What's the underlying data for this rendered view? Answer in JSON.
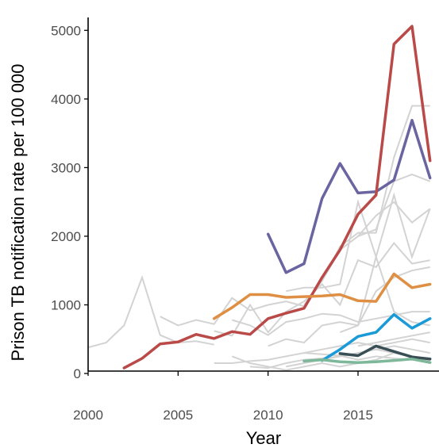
{
  "chart_data": {
    "type": "line",
    "title": "",
    "xlabel": "Year",
    "ylabel": "Prison TB notification rate per 100 000",
    "xlim": [
      2000,
      2019.5
    ],
    "ylim": [
      -150,
      5350
    ],
    "xticks": [
      {
        "value": 2000,
        "label": "2000"
      },
      {
        "value": 2005,
        "label": "2005"
      },
      {
        "value": 2010,
        "label": "2010"
      },
      {
        "value": 2015,
        "label": "2015"
      }
    ],
    "yticks": [
      {
        "value": 0,
        "label": "0"
      },
      {
        "value": 1000,
        "label": "1000"
      },
      {
        "value": 2000,
        "label": "2000"
      },
      {
        "value": 3000,
        "label": "3000"
      },
      {
        "value": 4000,
        "label": "4000"
      },
      {
        "value": 5000,
        "label": "5000"
      }
    ],
    "grid": false,
    "background_color": "#d3d3d3",
    "background_series": [
      {
        "x": [
          2000,
          2001,
          2002,
          2003,
          2004,
          2005,
          2006,
          2007
        ],
        "values": [
          380,
          450,
          700,
          1400,
          560,
          450,
          470,
          420
        ]
      },
      {
        "x": [
          2004,
          2005,
          2006,
          2007,
          2008,
          2009,
          2010,
          2011,
          2012
        ],
        "values": [
          830,
          700,
          780,
          720,
          1100,
          920,
          1000,
          1050,
          980
        ]
      },
      {
        "x": [
          2007,
          2008,
          2009,
          2010,
          2011,
          2012,
          2013,
          2014,
          2015,
          2016,
          2017,
          2018,
          2019
        ],
        "values": [
          620,
          550,
          1000,
          600,
          900,
          1050,
          1300,
          1000,
          1650,
          1550,
          1900,
          1600,
          1650
        ]
      },
      {
        "x": [
          2008,
          2009,
          2010,
          2011,
          2012,
          2013,
          2014,
          2015,
          2016,
          2017,
          2018,
          2019
        ],
        "values": [
          780,
          700,
          560,
          750,
          800,
          870,
          850,
          750,
          800,
          850,
          900,
          900
        ]
      },
      {
        "x": [
          2007,
          2008,
          2009,
          2010,
          2011,
          2012,
          2013,
          2014,
          2015,
          2016,
          2017,
          2018,
          2019
        ],
        "values": [
          150,
          150,
          180,
          200,
          250,
          300,
          280,
          260,
          200,
          250,
          220,
          200,
          180
        ]
      },
      {
        "x": [
          2009,
          2010,
          2011,
          2012,
          2013,
          2014,
          2015,
          2016,
          2017,
          2018,
          2019
        ],
        "values": [
          100,
          80,
          150,
          200,
          220,
          250,
          300,
          350,
          400,
          350,
          300
        ]
      },
      {
        "x": [
          2008,
          2009,
          2010,
          2011,
          2012,
          2013,
          2014,
          2015,
          2016,
          2017,
          2018,
          2019
        ],
        "values": [
          250,
          150,
          100,
          50,
          100,
          150,
          100,
          150,
          200,
          300,
          250,
          200
        ]
      },
      {
        "x": [
          2010,
          2011,
          2012,
          2013,
          2014,
          2015,
          2016,
          2017,
          2018,
          2019
        ],
        "values": [
          400,
          500,
          450,
          700,
          750,
          700,
          1700,
          900,
          750,
          700
        ]
      },
      {
        "x": [
          2011,
          2012,
          2013,
          2014,
          2015,
          2016,
          2017,
          2018,
          2019
        ],
        "values": [
          1200,
          1250,
          1250,
          1300,
          2500,
          1700,
          2600,
          1700,
          2400
        ]
      },
      {
        "x": [
          2012,
          2013,
          2014,
          2015,
          2016,
          2017,
          2018,
          2019
        ],
        "values": [
          1000,
          1350,
          1850,
          2050,
          2050,
          3150,
          3900,
          3900
        ]
      },
      {
        "x": [
          2013,
          2014,
          2015,
          2016,
          2017,
          2018,
          2019
        ],
        "values": [
          1350,
          1800,
          2000,
          2100,
          2800,
          2900,
          2800
        ]
      },
      {
        "x": [
          2014,
          2015,
          2016,
          2017,
          2018,
          2019
        ],
        "values": [
          600,
          700,
          1200,
          1400,
          1500,
          1550
        ]
      },
      {
        "x": [
          2015,
          2016,
          2017,
          2018,
          2019
        ],
        "values": [
          400,
          450,
          500,
          550,
          600
        ]
      },
      {
        "x": [
          2012,
          2013,
          2014,
          2015,
          2016,
          2017,
          2018,
          2019
        ],
        "values": [
          300,
          350,
          400,
          450,
          400,
          450,
          500,
          450
        ]
      },
      {
        "x": [
          2011,
          2012,
          2013,
          2014,
          2015,
          2016,
          2017,
          2018,
          2019
        ],
        "values": [
          100,
          150,
          200,
          250,
          300,
          350,
          300,
          250,
          200
        ]
      },
      {
        "x": [
          2015,
          2016,
          2017,
          2018,
          2019
        ],
        "values": [
          2000,
          2300,
          2500,
          2200,
          2400
        ]
      }
    ],
    "series": [
      {
        "color": "#6a65a0",
        "x": [
          2010,
          2011,
          2012,
          2013,
          2014,
          2015,
          2016,
          2017,
          2018,
          2019
        ],
        "values": [
          2030,
          1470,
          1600,
          2550,
          3060,
          2630,
          2650,
          2820,
          3690,
          2850
        ]
      },
      {
        "color": "#b94a48",
        "x": [
          2002,
          2003,
          2004,
          2005,
          2006,
          2007,
          2008,
          2009,
          2010,
          2011,
          2012,
          2013,
          2014,
          2015,
          2016,
          2017,
          2018,
          2019
        ],
        "values": [
          80,
          220,
          430,
          460,
          570,
          510,
          610,
          570,
          800,
          880,
          950,
          1400,
          1800,
          2320,
          2600,
          4800,
          5060,
          3100
        ]
      },
      {
        "color": "#df8f44",
        "x": [
          2007,
          2008,
          2009,
          2010,
          2011,
          2012,
          2013,
          2014,
          2015,
          2016,
          2017,
          2018,
          2019
        ],
        "values": [
          800,
          960,
          1150,
          1150,
          1110,
          1120,
          1130,
          1150,
          1060,
          1050,
          1450,
          1250,
          1300
        ]
      },
      {
        "color": "#1a9ad6",
        "x": [
          2013,
          2014,
          2015,
          2016,
          2017,
          2018,
          2019
        ],
        "values": [
          190,
          350,
          540,
          600,
          860,
          660,
          800
        ]
      },
      {
        "color": "#394e55",
        "x": [
          2014,
          2015,
          2016,
          2017,
          2018,
          2019
        ],
        "values": [
          290,
          260,
          400,
          320,
          240,
          210
        ]
      },
      {
        "color": "#7db89a",
        "x": [
          2012,
          2013,
          2014,
          2015,
          2016,
          2017,
          2018,
          2019
        ],
        "values": [
          180,
          200,
          170,
          160,
          170,
          190,
          210,
          160
        ]
      }
    ]
  }
}
